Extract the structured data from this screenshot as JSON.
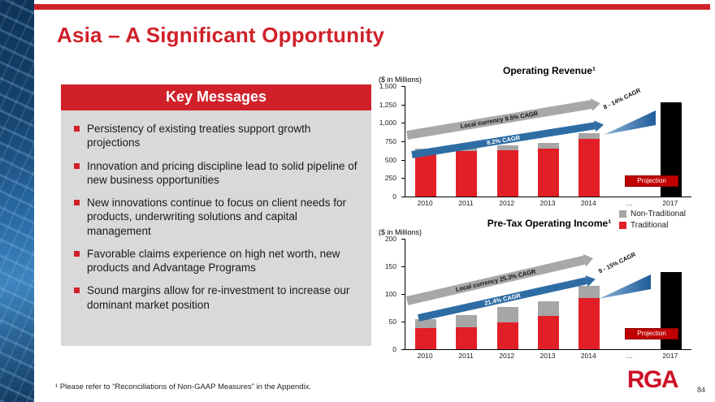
{
  "slide": {
    "title": "Asia – A Significant Opportunity",
    "footnote": "¹ Please refer to “Reconciliations of Non-GAAP Measures” in the Appendix.",
    "page_number": "84",
    "logo_text": "RGA"
  },
  "colors": {
    "accent_red": "#D0212A",
    "bar_red": "#E21E26",
    "bar_gray": "#A6A6A6",
    "bar_black": "#000000",
    "arrow_gray": "#A8A8A8",
    "arrow_blue": "#2E6DA4",
    "projection_red": "#C00000"
  },
  "key_messages": {
    "header": "Key Messages",
    "bullets": [
      "Persistency of existing treaties support growth projections",
      "Innovation and pricing discipline lead to solid pipeline of new business opportunities",
      "New innovations continue to focus on client needs for products, underwriting solutions and capital management",
      "Favorable claims experience on high net worth, new products and Advantage Programs",
      "Sound margins allow for re-investment to increase our dominant market position"
    ]
  },
  "legend": {
    "items": [
      {
        "label": "Non-Traditional",
        "color": "#A6A6A6"
      },
      {
        "label": "Traditional",
        "color": "#E21E26"
      }
    ]
  },
  "chart_data": [
    {
      "type": "bar",
      "stacked": true,
      "title": "Operating Revenue¹",
      "units": "($ in Millions)",
      "categories": [
        "2010",
        "2011",
        "2012",
        "2013",
        "2014",
        "…",
        "2017"
      ],
      "series": [
        {
          "name": "Traditional",
          "color": "#E21E26",
          "values": [
            590,
            615,
            630,
            655,
            785,
            null,
            null
          ]
        },
        {
          "name": "Non-Traditional",
          "color": "#A6A6A6",
          "values": [
            60,
            55,
            65,
            75,
            70,
            null,
            null
          ]
        },
        {
          "name": "Projection",
          "color": "#000000",
          "values": [
            null,
            null,
            null,
            null,
            null,
            null,
            1280
          ]
        }
      ],
      "ylim": [
        0,
        1500
      ],
      "yticks": [
        "0",
        "250",
        "500",
        "750",
        "1,000",
        "1,250",
        "1,500"
      ],
      "grid": false,
      "annotations": [
        {
          "id": "local-currency-cagr",
          "text": "Local currency 9.5% CAGR"
        },
        {
          "id": "usd-cagr",
          "text": "8.2% CAGR"
        },
        {
          "id": "projected-cagr",
          "text": "8 - 14% CAGR"
        },
        {
          "id": "projection-flag",
          "text": "Projection"
        }
      ]
    },
    {
      "type": "bar",
      "stacked": true,
      "title": "Pre-Tax Operating Income¹",
      "units": "($ in Millions)",
      "categories": [
        "2010",
        "2011",
        "2012",
        "2013",
        "2014",
        "…",
        "2017"
      ],
      "series": [
        {
          "name": "Traditional",
          "color": "#E21E26",
          "values": [
            38,
            40,
            48,
            60,
            92,
            null,
            null
          ]
        },
        {
          "name": "Non-Traditional",
          "color": "#A6A6A6",
          "values": [
            17,
            22,
            28,
            27,
            23,
            null,
            null
          ]
        },
        {
          "name": "Projection",
          "color": "#000000",
          "values": [
            null,
            null,
            null,
            null,
            null,
            null,
            140
          ]
        }
      ],
      "ylim": [
        0,
        200
      ],
      "yticks": [
        "0",
        "50",
        "100",
        "150",
        "200"
      ],
      "grid": false,
      "annotations": [
        {
          "id": "local-currency-cagr",
          "text": "Local currency 25.3% CAGR"
        },
        {
          "id": "usd-cagr",
          "text": "21.4% CAGR"
        },
        {
          "id": "projected-cagr",
          "text": "9 - 15% CAGR"
        },
        {
          "id": "projection-flag",
          "text": "Projection"
        }
      ]
    }
  ]
}
